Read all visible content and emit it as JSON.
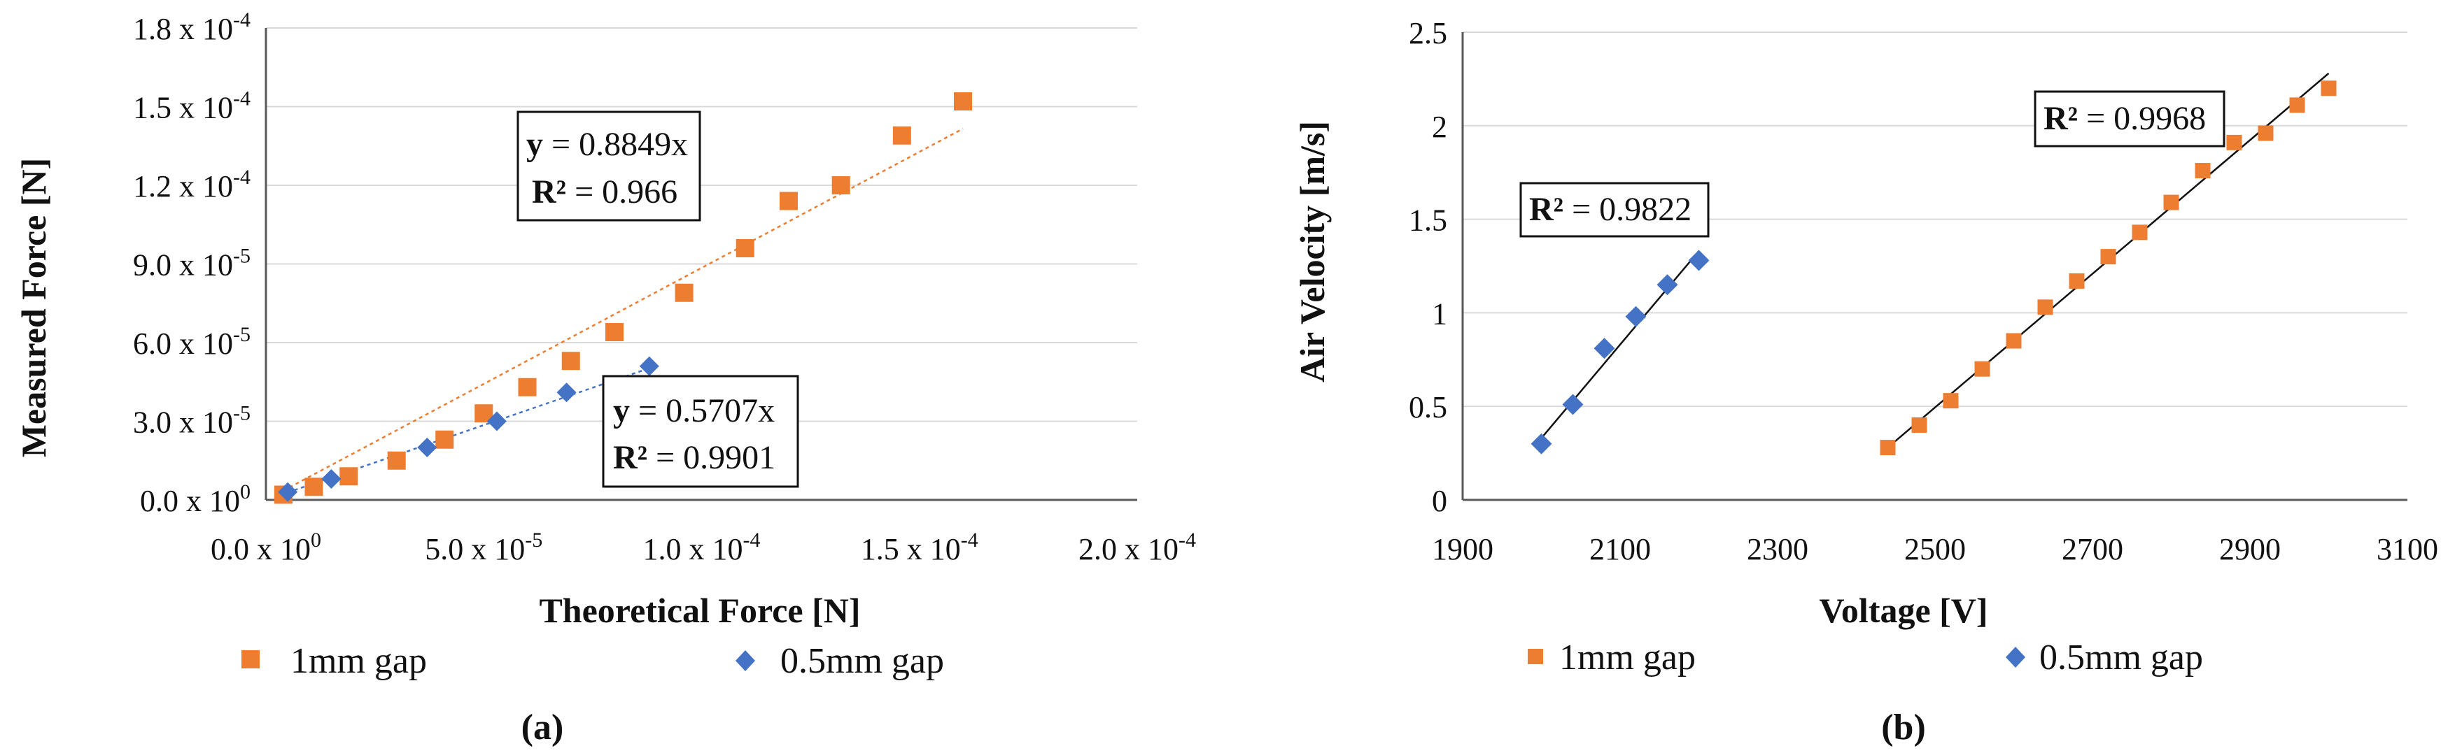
{
  "colors": {
    "orange": "#ED7D31",
    "blue": "#4472C4",
    "axis": "#595959",
    "grid": "#d9d9d9"
  },
  "chart_data": [
    {
      "type": "scatter",
      "panel_label": "(a)",
      "xlabel": "Theoretical Force [N]",
      "ylabel": "Measured Force [N]",
      "xlim": [
        0,
        0.0002
      ],
      "ylim": [
        0,
        0.00018
      ],
      "x_ticks": [
        0,
        5e-05,
        0.0001,
        0.00015,
        0.0002
      ],
      "x_tick_labels": [
        {
          "mantissa": "0.0 x 10",
          "exp": "0"
        },
        {
          "mantissa": "5.0 x 10",
          "exp": "-5"
        },
        {
          "mantissa": "1.0 x 10",
          "exp": "-4"
        },
        {
          "mantissa": "1.5 x 10",
          "exp": "-4"
        },
        {
          "mantissa": "2.0 x 10",
          "exp": "-4"
        }
      ],
      "y_ticks": [
        0,
        3e-05,
        6e-05,
        9e-05,
        0.00012,
        0.00015,
        0.00018
      ],
      "y_tick_labels": [
        {
          "mantissa": "0.0 x 10",
          "exp": "0"
        },
        {
          "mantissa": "3.0 x 10",
          "exp": "-5"
        },
        {
          "mantissa": "6.0 x 10",
          "exp": "-5"
        },
        {
          "mantissa": "9.0 x 10",
          "exp": "-5"
        },
        {
          "mantissa": "1.2 x 10",
          "exp": "-4"
        },
        {
          "mantissa": "1.5 x 10",
          "exp": "-4"
        },
        {
          "mantissa": "1.8 x 10",
          "exp": "-4"
        }
      ],
      "series": [
        {
          "name": "1mm gap",
          "marker": "square",
          "color": "#ED7D31",
          "x": [
            4e-06,
            1.1e-05,
            1.9e-05,
            3e-05,
            4.1e-05,
            5e-05,
            6e-05,
            7e-05,
            8e-05,
            9.6e-05,
            0.00011,
            0.00012,
            0.000132,
            0.000146,
            0.00016
          ],
          "y": [
            2e-06,
            5e-06,
            9e-06,
            1.5e-05,
            2.3e-05,
            3.3e-05,
            4.3e-05,
            5.3e-05,
            6.4e-05,
            7.9e-05,
            9.6e-05,
            0.000114,
            0.00012,
            0.000139,
            0.000152
          ],
          "trendline": {
            "slope": 0.8849,
            "x_range": [
              4e-06,
              0.00016
            ]
          }
        },
        {
          "name": "0.5mm gap",
          "marker": "diamond",
          "color": "#4472C4",
          "x": [
            5e-06,
            1.5e-05,
            3.7e-05,
            5.3e-05,
            6.9e-05,
            8.8e-05
          ],
          "y": [
            3e-06,
            8e-06,
            2e-05,
            3e-05,
            4.1e-05,
            5.1e-05
          ],
          "trendline": {
            "slope": 0.5707,
            "x_range": [
              5e-06,
              8.8e-05
            ]
          }
        }
      ],
      "annotations": [
        {
          "eq_label": "y",
          "eq_value": " = 0.8849x",
          "r2_label": "R² ",
          "r2_value": "= 0.966"
        },
        {
          "eq_label": "y",
          "eq_value": " = 0.5707x",
          "r2_label": "R² ",
          "r2_value": "= 0.9901"
        }
      ],
      "legend": [
        "1mm gap",
        "0.5mm gap"
      ]
    },
    {
      "type": "scatter",
      "panel_label": "(b)",
      "xlabel": "Voltage [V]",
      "ylabel": "Air Velocity [m/s]",
      "xlim": [
        1900,
        3100
      ],
      "ylim": [
        0,
        2.5
      ],
      "x_ticks": [
        1900,
        2100,
        2300,
        2500,
        2700,
        2900,
        3100
      ],
      "x_tick_labels": [
        "1900",
        "2100",
        "2300",
        "2500",
        "2700",
        "2900",
        "3100"
      ],
      "y_ticks": [
        0,
        0.5,
        1,
        1.5,
        2,
        2.5
      ],
      "y_tick_labels": [
        "0",
        "0.5",
        "1",
        "1.5",
        "2",
        "2.5"
      ],
      "series": [
        {
          "name": "1mm gap",
          "marker": "square",
          "color": "#ED7D31",
          "x": [
            2440,
            2480,
            2520,
            2560,
            2600,
            2640,
            2680,
            2720,
            2760,
            2800,
            2840,
            2880,
            2920,
            2960,
            3000
          ],
          "y": [
            0.28,
            0.4,
            0.53,
            0.7,
            0.85,
            1.03,
            1.17,
            1.3,
            1.43,
            1.59,
            1.76,
            1.91,
            1.96,
            2.11,
            2.2
          ],
          "trendline": {
            "x_range": [
              2440,
              3000
            ],
            "y_range": [
              0.28,
              2.28
            ]
          }
        },
        {
          "name": "0.5mm gap",
          "marker": "diamond",
          "color": "#4472C4",
          "x": [
            2000,
            2040,
            2080,
            2120,
            2160,
            2200
          ],
          "y": [
            0.3,
            0.51,
            0.81,
            0.98,
            1.15,
            1.28
          ],
          "trendline": {
            "x_range": [
              2000,
              2200
            ],
            "y_range": [
              0.33,
              1.33
            ]
          }
        }
      ],
      "annotations": [
        {
          "r2_label": "R² ",
          "r2_value": "= 0.9968"
        },
        {
          "r2_label": "R² ",
          "r2_value": "= 0.9822"
        }
      ],
      "legend": [
        "1mm gap",
        "0.5mm gap"
      ]
    }
  ]
}
